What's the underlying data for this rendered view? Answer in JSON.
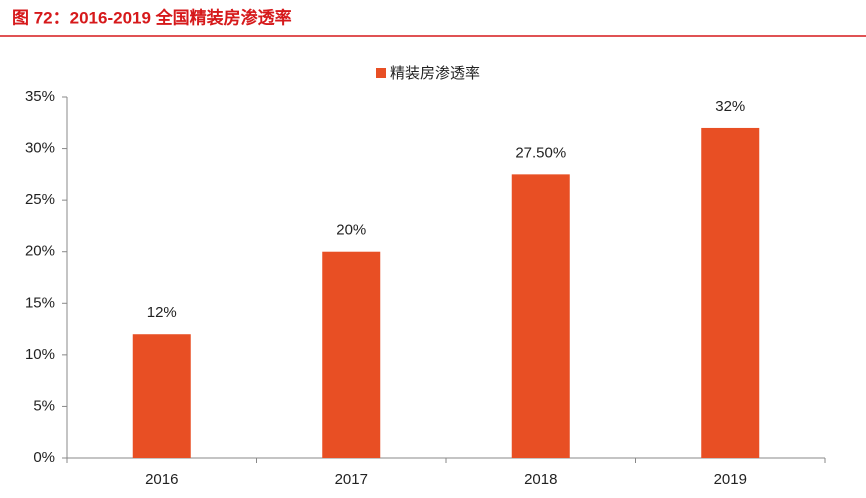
{
  "chart_data": {
    "type": "bar",
    "title": "图 72：2016-2019 全国精装房渗透率",
    "categories": [
      "2016",
      "2017",
      "2018",
      "2019"
    ],
    "series": [
      {
        "name": "精装房渗透率",
        "color": "#e84f24",
        "values": [
          12,
          20,
          27.5,
          32
        ],
        "value_labels": [
          "12%",
          "20%",
          "27.50%",
          "32%"
        ]
      }
    ],
    "ylim": [
      0,
      35
    ],
    "yticks": [
      {
        "value": 0,
        "label": "0%"
      },
      {
        "value": 5,
        "label": "5%"
      },
      {
        "value": 10,
        "label": "10%"
      },
      {
        "value": 15,
        "label": "15%"
      },
      {
        "value": 20,
        "label": "20%"
      },
      {
        "value": 25,
        "label": "25%"
      },
      {
        "value": 30,
        "label": "30%"
      },
      {
        "value": 35,
        "label": "35%"
      }
    ],
    "grid": false,
    "legend": "top"
  }
}
